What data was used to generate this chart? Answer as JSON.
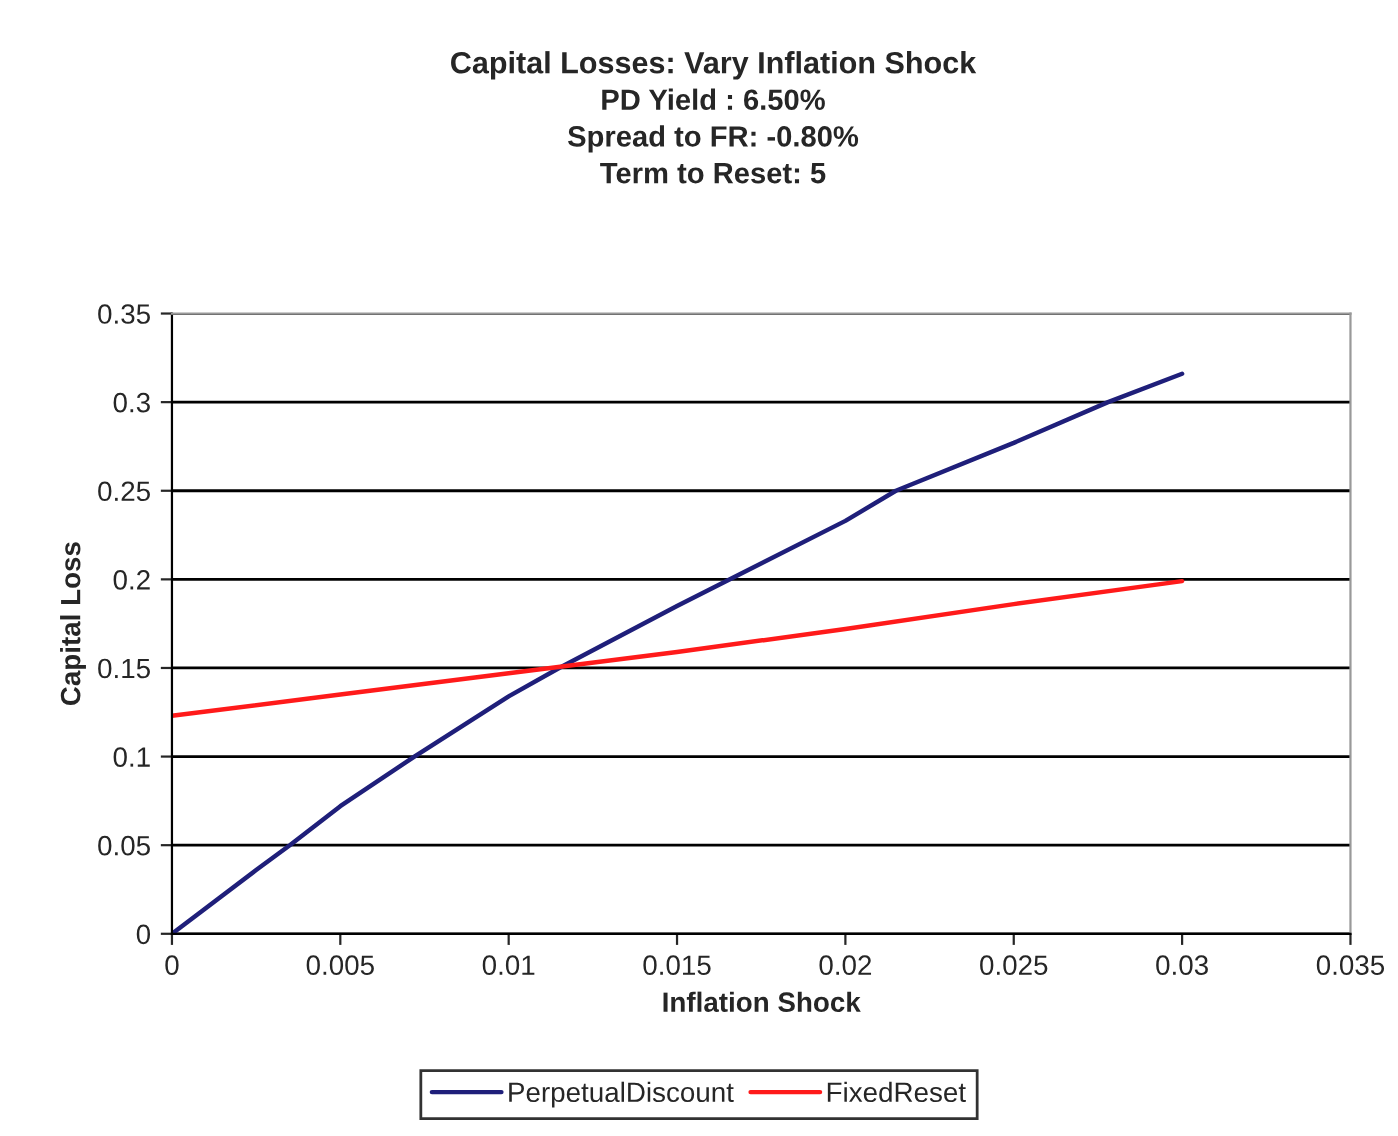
{
  "chart_data": {
    "type": "line",
    "title": "Capital Losses: Vary Inflation Shock",
    "subtitle": "PD Yield : 6.50%\nSpread to FR: -0.80%\nTerm to Reset: 5",
    "xlabel": "Inflation Shock",
    "ylabel": "Capital Loss",
    "xlim": [
      0,
      0.035
    ],
    "xticks": [
      0,
      0.005,
      0.01,
      0.015,
      0.02,
      0.025,
      0.03,
      0.035
    ],
    "ylim": [
      0,
      0.35
    ],
    "yticks": [
      0,
      0.05,
      0.1,
      0.15,
      0.2,
      0.25,
      0.3,
      0.35
    ],
    "grid": "y",
    "legend": "bottom",
    "marker": "none",
    "line_style": "solid",
    "series": [
      {
        "name": "PerpetualDiscount",
        "color": "#1f1f7a",
        "x": [
          0,
          0.0025,
          0.0035,
          0.005,
          0.0072,
          0.01,
          0.0115,
          0.015,
          0.02,
          0.0215,
          0.025,
          0.0278,
          0.03
        ],
        "values": [
          0,
          0.036,
          0.05,
          0.072,
          0.1,
          0.134,
          0.15,
          0.185,
          0.233,
          0.25,
          0.277,
          0.3,
          0.316
        ]
      },
      {
        "name": "FixedReset",
        "color": "#ff1a1a",
        "x": [
          0,
          0.005,
          0.01,
          0.015,
          0.02,
          0.025,
          0.03
        ],
        "values": [
          0.123,
          0.135,
          0.147,
          0.159,
          0.172,
          0.186,
          0.199
        ]
      }
    ]
  }
}
